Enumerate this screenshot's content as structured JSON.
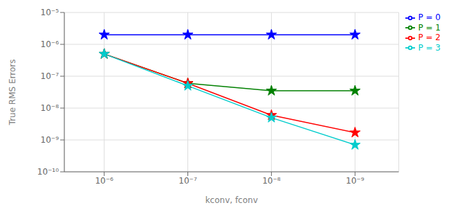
{
  "chart_data": {
    "type": "line",
    "x": [
      1e-06,
      1e-07,
      1e-08,
      1e-09
    ],
    "series": [
      {
        "name": "P = 0",
        "color": "#0000ff",
        "marker": "star",
        "values": [
          2e-06,
          2e-06,
          2e-06,
          2e-06
        ]
      },
      {
        "name": "P = 1",
        "color": "#008000",
        "marker": "star",
        "values": [
          5e-07,
          6e-08,
          3.5e-08,
          3.5e-08
        ]
      },
      {
        "name": "P = 2",
        "color": "#ff0000",
        "marker": "star",
        "values": [
          5e-07,
          6e-08,
          6e-09,
          1.7e-09
        ]
      },
      {
        "name": "P = 3",
        "color": "#00cccc",
        "marker": "star",
        "values": [
          5e-07,
          5e-08,
          5e-09,
          7e-10
        ]
      }
    ],
    "xlabel": "kconv, fconv",
    "ylabel": "True RMS Errors",
    "xlim": [
      3e-06,
      3e-10
    ],
    "ylim": [
      1e-10,
      1e-05
    ],
    "xticks": [
      {
        "value": 1e-06,
        "label": "10⁻⁶"
      },
      {
        "value": 1e-07,
        "label": "10⁻⁷"
      },
      {
        "value": 1e-08,
        "label": "10⁻⁸"
      },
      {
        "value": 1e-09,
        "label": "10⁻⁹"
      }
    ],
    "yticks": [
      {
        "value": 1e-10,
        "label": "10⁻¹⁰"
      },
      {
        "value": 1e-09,
        "label": "10⁻⁹"
      },
      {
        "value": 1e-08,
        "label": "10⁻⁸"
      },
      {
        "value": 1e-07,
        "label": "10⁻⁷"
      },
      {
        "value": 1e-06,
        "label": "10⁻⁶"
      },
      {
        "value": 1e-05,
        "label": "10⁻⁵"
      }
    ],
    "log": true,
    "grid": true,
    "legend": "upper right"
  }
}
